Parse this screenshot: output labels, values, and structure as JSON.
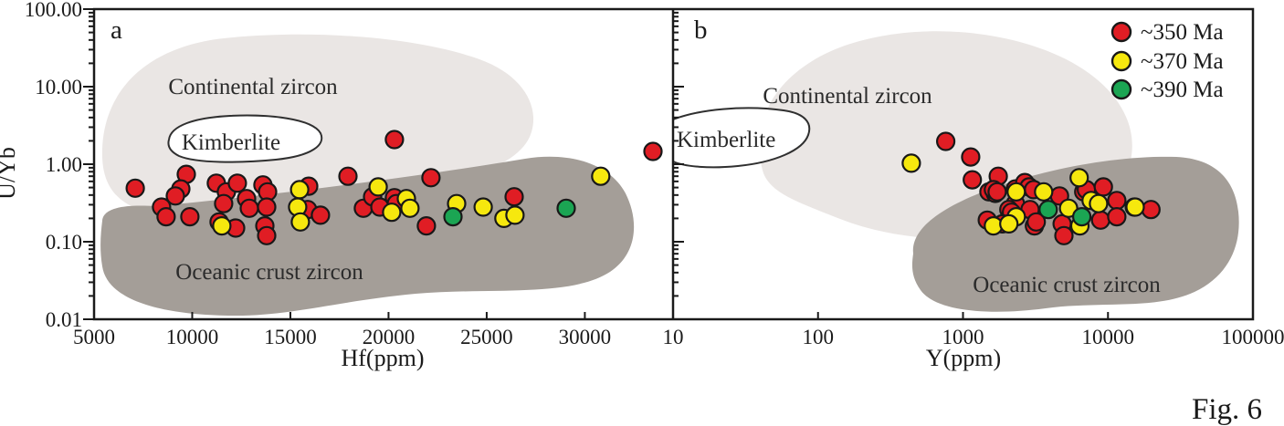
{
  "figure": {
    "caption": "Fig. 6"
  },
  "panels": {
    "a": {
      "label": "a",
      "x_axis_label": "Hf(ppm)",
      "regions": {
        "continental": "Continental zircon",
        "kimberlite": "Kimberlite",
        "oceanic": "Oceanic crust zircon"
      }
    },
    "b": {
      "label": "b",
      "x_axis_label": "Y(ppm)",
      "regions": {
        "continental": "Continental zircon",
        "kimberlite": "Kimberlite",
        "oceanic": "Oceanic crust zircon"
      }
    }
  },
  "y_axis": {
    "label": "U/Yb",
    "scale": "log",
    "min": 0.01,
    "max": 100,
    "tick_values": [
      100,
      10,
      1,
      0.1,
      0.01
    ],
    "tick_labels": [
      "100.00",
      "10.00",
      "1.00",
      "0.10",
      "0.01"
    ]
  },
  "legend": {
    "items": [
      {
        "label": "~350 Ma",
        "color": "#e01d24"
      },
      {
        "label": "~370 Ma",
        "color": "#f6e80e"
      },
      {
        "label": "~390 Ma",
        "color": "#1ba553"
      }
    ]
  },
  "colors": {
    "marker_red": "#e01d24",
    "marker_yellow": "#f6e80e",
    "marker_green": "#1ba553",
    "marker_outline": "#181818",
    "continental_region": "#eae6e4",
    "oceanic_region": "#a49e98",
    "kimberlite_fill": "#ffffff",
    "region_outline": "#2f2f2f",
    "axis": "#1a1a1a"
  },
  "chart_data": [
    {
      "type": "scatter",
      "panel": "a",
      "title": "",
      "xlabel": "Hf(ppm)",
      "ylabel": "U/Yb",
      "xscale": "linear",
      "xlim": [
        5000,
        34400
      ],
      "xticks": [
        5000,
        10000,
        15000,
        20000,
        25000,
        30000
      ],
      "xtick_labels": [
        "5000",
        "10000",
        "15000",
        "20000",
        "25000",
        "30000"
      ],
      "yscale": "log",
      "ylim": [
        0.01,
        100
      ],
      "yticks": [
        100,
        10,
        1,
        0.1,
        0.01
      ],
      "grid": false,
      "regions": [
        "Continental zircon",
        "Kimberlite",
        "Oceanic crust zircon"
      ],
      "series": [
        {
          "name": "~350 Ma",
          "color": "#e01d24",
          "points": [
            [
              7100,
              0.49
            ],
            [
              9700,
              0.74
            ],
            [
              9420,
              0.48
            ],
            [
              9140,
              0.39
            ],
            [
              8440,
              0.28
            ],
            [
              8670,
              0.21
            ],
            [
              9880,
              0.21
            ],
            [
              11230,
              0.57
            ],
            [
              11740,
              0.44
            ],
            [
              12300,
              0.57
            ],
            [
              11600,
              0.31
            ],
            [
              11370,
              0.18
            ],
            [
              12210,
              0.15
            ],
            [
              13600,
              0.54
            ],
            [
              13840,
              0.44
            ],
            [
              12770,
              0.36
            ],
            [
              12910,
              0.27
            ],
            [
              13790,
              0.28
            ],
            [
              13700,
              0.16
            ],
            [
              13790,
              0.12
            ],
            [
              15930,
              0.52
            ],
            [
              15880,
              0.26
            ],
            [
              16530,
              0.22
            ],
            [
              17930,
              0.7
            ],
            [
              18720,
              0.27
            ],
            [
              19190,
              0.38
            ],
            [
              19560,
              0.28
            ],
            [
              20300,
              0.37
            ],
            [
              20400,
              0.31
            ],
            [
              20300,
              2.08
            ],
            [
              22160,
              0.67
            ],
            [
              21930,
              0.16
            ],
            [
              26400,
              0.38
            ],
            [
              33470,
              1.46
            ]
          ]
        },
        {
          "name": "~370 Ma",
          "color": "#f6e80e",
          "points": [
            [
              11510,
              0.16
            ],
            [
              15470,
              0.47
            ],
            [
              15370,
              0.28
            ],
            [
              15510,
              0.18
            ],
            [
              19470,
              0.51
            ],
            [
              20910,
              0.36
            ],
            [
              21090,
              0.27
            ],
            [
              20160,
              0.24
            ],
            [
              23470,
              0.31
            ],
            [
              24820,
              0.28
            ],
            [
              25880,
              0.2
            ],
            [
              26440,
              0.22
            ],
            [
              30810,
              0.7
            ]
          ]
        },
        {
          "name": "~390 Ma",
          "color": "#1ba553",
          "points": [
            [
              23280,
              0.21
            ],
            [
              29050,
              0.27
            ]
          ]
        }
      ]
    },
    {
      "type": "scatter",
      "panel": "b",
      "title": "",
      "xlabel": "Y(ppm)",
      "ylabel": "U/Yb",
      "xscale": "log",
      "xlim": [
        10,
        100000
      ],
      "xticks": [
        10,
        100,
        1000,
        10000,
        100000
      ],
      "xtick_labels": [
        "10",
        "100",
        "1000",
        "10000",
        "100000"
      ],
      "yscale": "log",
      "ylim": [
        0.01,
        100
      ],
      "yticks": [
        100,
        10,
        1,
        0.1,
        0.01
      ],
      "grid": false,
      "regions": [
        "Continental zircon",
        "Kimberlite",
        "Oceanic crust zircon"
      ],
      "series": [
        {
          "name": "~350 Ma",
          "color": "#e01d24",
          "points": [
            [
              760,
              1.97
            ],
            [
              1130,
              1.24
            ],
            [
              1160,
              0.63
            ],
            [
              1750,
              0.7
            ],
            [
              1510,
              0.44
            ],
            [
              1670,
              0.42
            ],
            [
              1620,
              0.47
            ],
            [
              1720,
              0.44
            ],
            [
              2300,
              0.48
            ],
            [
              2670,
              0.58
            ],
            [
              2860,
              0.51
            ],
            [
              3070,
              0.47
            ],
            [
              4630,
              0.39
            ],
            [
              2300,
              0.31
            ],
            [
              2070,
              0.26
            ],
            [
              2160,
              0.24
            ],
            [
              2900,
              0.26
            ],
            [
              3110,
              0.16
            ],
            [
              1470,
              0.19
            ],
            [
              1870,
              0.17
            ],
            [
              3200,
              0.18
            ],
            [
              4830,
              0.17
            ],
            [
              4970,
              0.12
            ],
            [
              6800,
              0.44
            ],
            [
              7100,
              0.47
            ],
            [
              8900,
              0.19
            ],
            [
              9300,
              0.51
            ],
            [
              11500,
              0.34
            ],
            [
              11500,
              0.21
            ],
            [
              15200,
              0.28
            ],
            [
              19800,
              0.26
            ]
          ]
        },
        {
          "name": "~370 Ma",
          "color": "#f6e80e",
          "points": [
            [
              440,
              1.03
            ],
            [
              3600,
              0.44
            ],
            [
              2330,
              0.44
            ],
            [
              2330,
              0.21
            ],
            [
              1620,
              0.16
            ],
            [
              2070,
              0.17
            ],
            [
              5350,
              0.27
            ],
            [
              6330,
              0.67
            ],
            [
              7650,
              0.34
            ],
            [
              8600,
              0.31
            ],
            [
              6400,
              0.16
            ],
            [
              15400,
              0.28
            ]
          ]
        },
        {
          "name": "~390 Ma",
          "color": "#1ba553",
          "points": [
            [
              3870,
              0.26
            ],
            [
              6600,
              0.21
            ]
          ]
        }
      ]
    }
  ]
}
